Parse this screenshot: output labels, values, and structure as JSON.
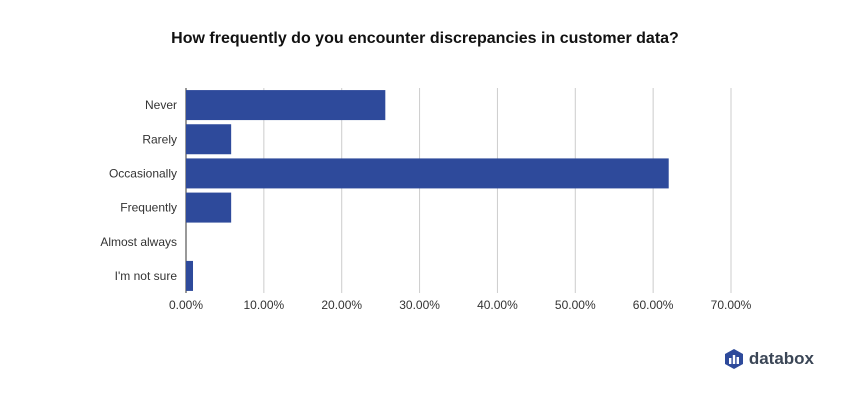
{
  "chart_data": {
    "type": "bar",
    "orientation": "horizontal",
    "title": "How frequently do you encounter discrepancies in customer data?",
    "categories": [
      "Never",
      "Rarely",
      "Occasionally",
      "Frequently",
      "Almost always",
      "I'm not sure"
    ],
    "values": [
      25.6,
      5.8,
      62.0,
      5.8,
      0.0,
      0.9
    ],
    "value_unit": "%",
    "xlim": [
      0,
      70
    ],
    "x_ticks": [
      "0.00%",
      "10.00%",
      "20.00%",
      "30.00%",
      "40.00%",
      "50.00%",
      "60.00%",
      "70.00%"
    ],
    "xlabel": "",
    "ylabel": "",
    "grid": "vertical",
    "legend": "none",
    "colors": {
      "bar": "#2e4a9b",
      "grid": "#cccccc",
      "axis": "#333333"
    }
  },
  "brand": {
    "name": "databox",
    "icon": "databox-logo-icon",
    "color": "#2e4a9b"
  }
}
